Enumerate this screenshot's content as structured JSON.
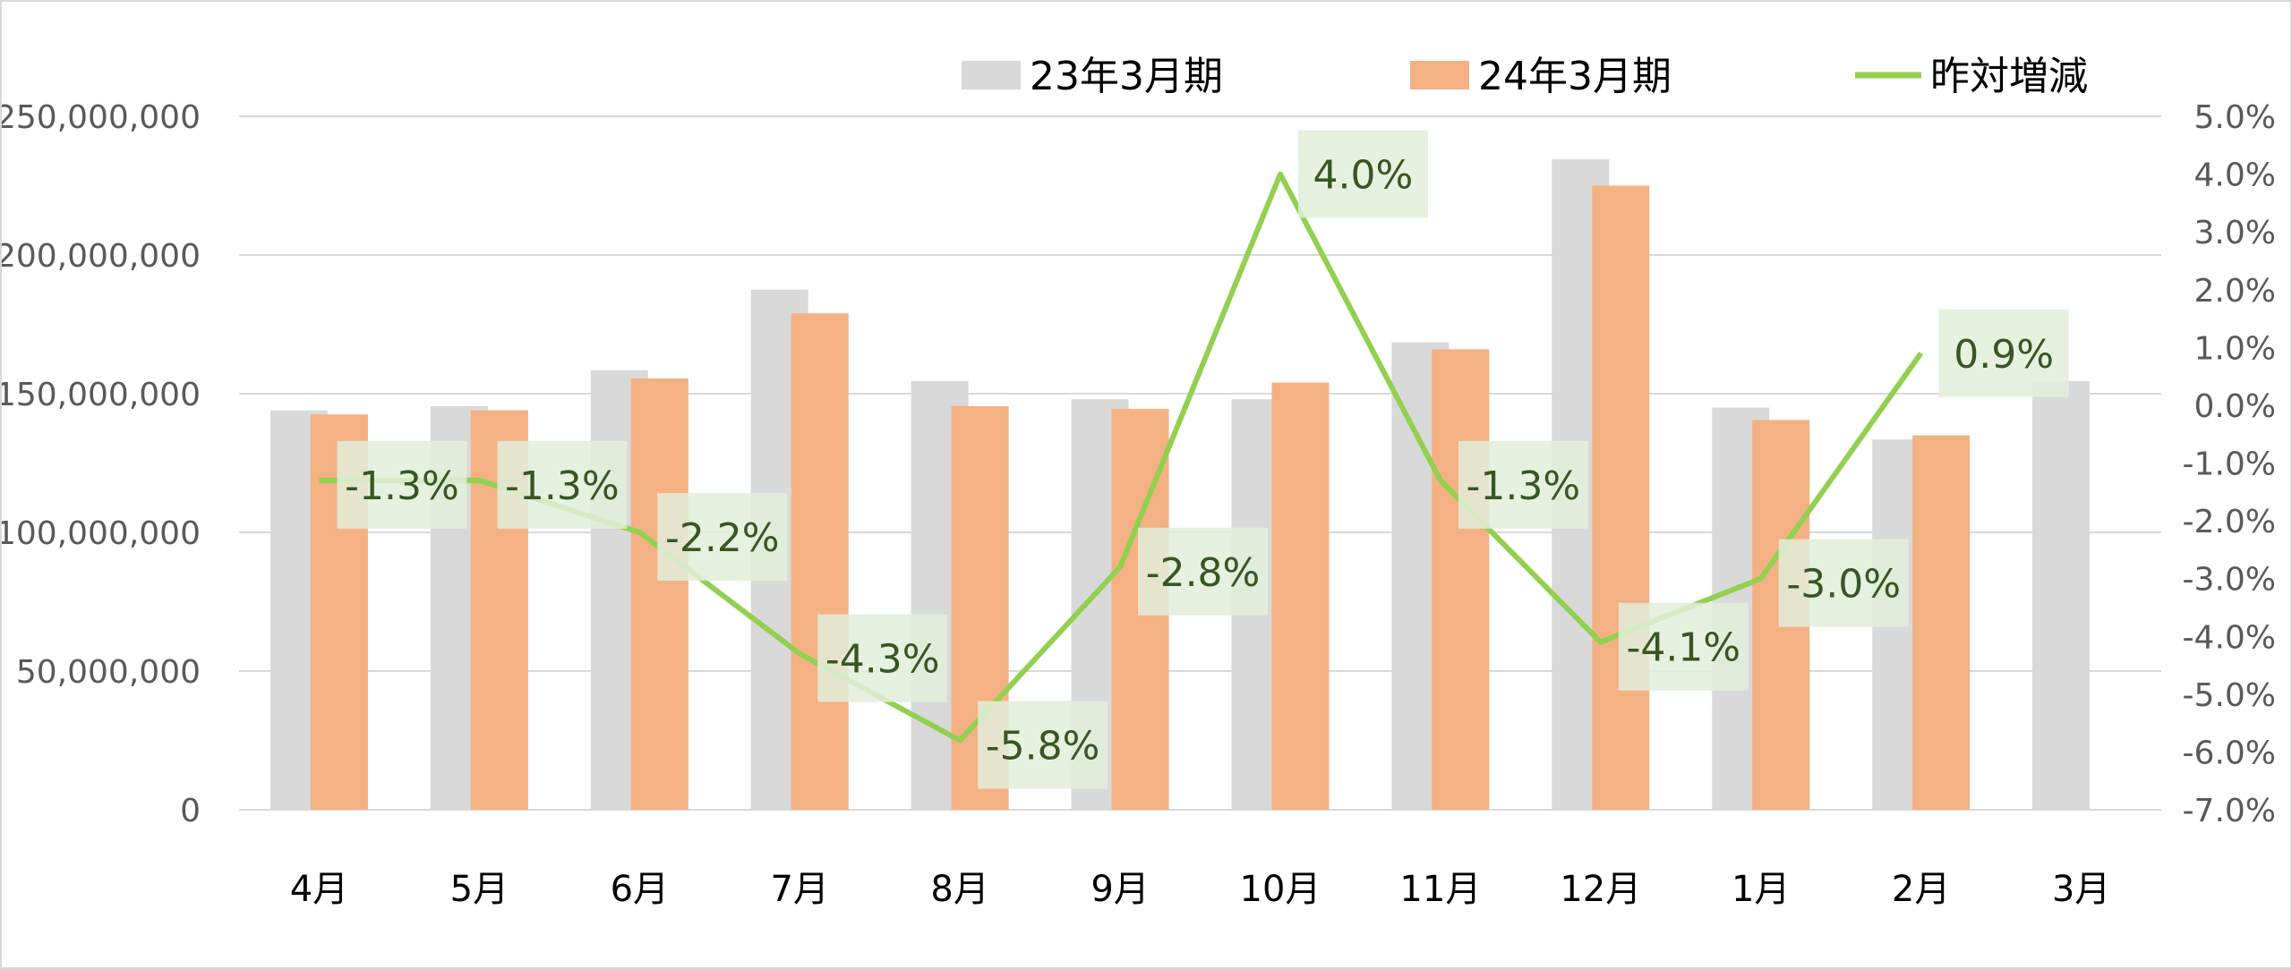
{
  "chart_data": {
    "type": "bar",
    "title": "",
    "xlabel": "",
    "ylabel": "",
    "categories": [
      "4月",
      "5月",
      "6月",
      "7月",
      "8月",
      "9月",
      "10月",
      "11月",
      "12月",
      "1月",
      "2月",
      "3月"
    ],
    "series": [
      {
        "name": "23年3月期",
        "type": "bar",
        "axis": "left",
        "color": "#d9d9d9",
        "values": [
          144000000,
          145500000,
          158500000,
          187500000,
          154500000,
          148000000,
          148000000,
          168500000,
          234500000,
          145000000,
          133500000,
          154500000
        ]
      },
      {
        "name": "24年3月期",
        "type": "bar",
        "axis": "left",
        "color": "#f4b183",
        "values": [
          142500000,
          144000000,
          155500000,
          179000000,
          145500000,
          144500000,
          154000000,
          166000000,
          225000000,
          140500000,
          135000000,
          null
        ]
      },
      {
        "name": "昨対増減",
        "type": "line",
        "axis": "right",
        "color": "#92d050",
        "values": [
          -1.3,
          -1.3,
          -2.2,
          -4.3,
          -5.8,
          -2.8,
          4.0,
          -1.3,
          -4.1,
          -3.0,
          0.9,
          null
        ],
        "labels": [
          "-1.3%",
          "-1.3%",
          "-2.2%",
          "-4.3%",
          "-5.8%",
          "-2.8%",
          "4.0%",
          "-1.3%",
          "-4.1%",
          "-3.0%",
          "0.9%",
          ""
        ]
      }
    ],
    "y_left": {
      "min": 0,
      "max": 250000000,
      "ticks": [
        0,
        50000000,
        100000000,
        150000000,
        200000000,
        250000000
      ],
      "tick_labels": [
        "0",
        "50,000,000",
        "100,000,000",
        "150,000,000",
        "200,000,000",
        "250,000,000"
      ]
    },
    "y_right": {
      "min": -7.0,
      "max": 5.0,
      "ticks": [
        -7,
        -6,
        -5,
        -4,
        -3,
        -2,
        -1,
        0,
        1,
        2,
        3,
        4,
        5
      ],
      "tick_labels": [
        "-7.0%",
        "-6.0%",
        "-5.0%",
        "-4.0%",
        "-3.0%",
        "-2.0%",
        "-1.0%",
        "0.0%",
        "1.0%",
        "2.0%",
        "3.0%",
        "4.0%",
        "5.0%"
      ]
    },
    "grid": true,
    "legend": {
      "position": "top"
    },
    "label_box_color": "#e2efda"
  }
}
